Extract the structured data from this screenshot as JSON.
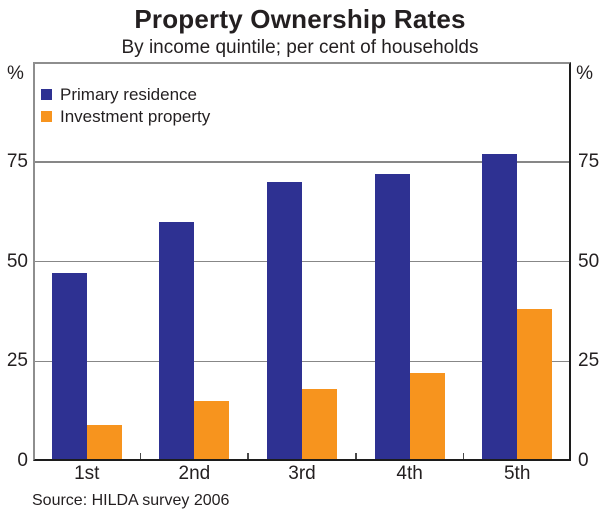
{
  "chart_data": {
    "type": "bar",
    "title": "Property Ownership Rates",
    "subtitle": "By income quintile; per cent of households",
    "categories": [
      "1st",
      "2nd",
      "3rd",
      "4th",
      "5th"
    ],
    "series": [
      {
        "name": "Primary residence",
        "color": "#2e3192",
        "values": [
          47,
          60,
          70,
          72,
          77
        ]
      },
      {
        "name": "Investment property",
        "color": "#f7941e",
        "values": [
          9,
          15,
          18,
          22,
          38
        ]
      }
    ],
    "xlabel": "",
    "ylabel": "%",
    "ylabel_right": "%",
    "ylim": [
      0,
      100
    ],
    "yticks": [
      0,
      25,
      50,
      75
    ],
    "grid": true,
    "legend_position": "top-left",
    "source": "Source: HILDA survey 2006"
  },
  "colors": {
    "grid": "#878787",
    "frame_light": "#8e8e8e",
    "frame_dark": "#1c1c1c",
    "text": "#231f20"
  }
}
